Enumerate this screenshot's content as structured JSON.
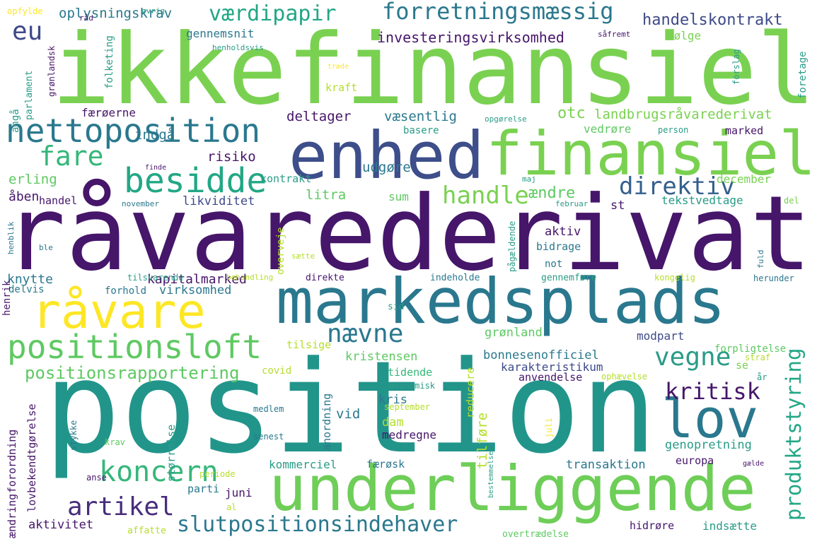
{
  "palette": {
    "dark_purple": "#46166a",
    "indigo": "#3d4e8a",
    "blue": "#355f8d",
    "teal_blue": "#2a788e",
    "teal": "#21918c",
    "aqua_green": "#22a785",
    "green": "#35b779",
    "light_green": "#6ece58",
    "lime": "#8fd744",
    "yellow_green": "#b5de2b",
    "yellow": "#fde725"
  },
  "words": [
    {
      "text": "ikkefinansiel",
      "color": "#7ad151"
    },
    {
      "text": "råvarederivat",
      "color": "#46166a"
    },
    {
      "text": "position",
      "color": "#22958b"
    },
    {
      "text": "markedsplads",
      "color": "#2a788e"
    },
    {
      "text": "underliggende",
      "color": "#6ece58"
    },
    {
      "text": "enhed",
      "color": "#3d4e8a"
    },
    {
      "text": "finansiel",
      "color": "#7ad151"
    },
    {
      "text": "nettoposition",
      "color": "#2a788e"
    },
    {
      "text": "råvare",
      "color": "#fde725"
    },
    {
      "text": "lov",
      "color": "#2a788e"
    },
    {
      "text": "positionsloft",
      "color": "#5ec962"
    },
    {
      "text": "besidde",
      "color": "#22a785"
    },
    {
      "text": "koncern",
      "color": "#35b779"
    },
    {
      "text": "fare",
      "color": "#35b779"
    },
    {
      "text": "forretningsmæssig",
      "color": "#2a788e"
    },
    {
      "text": "værdipapir",
      "color": "#22a785"
    },
    {
      "text": "eu",
      "color": "#3e4a89"
    },
    {
      "text": "direktiv",
      "color": "#355f8d"
    },
    {
      "text": "handle",
      "color": "#7ad151"
    },
    {
      "text": "nævne",
      "color": "#2a788e"
    },
    {
      "text": "vegne",
      "color": "#2a9c87"
    },
    {
      "text": "kritisk",
      "color": "#46166a"
    },
    {
      "text": "artikel",
      "color": "#472d7b"
    },
    {
      "text": "slutpositionsindehaver",
      "color": "#2a788e"
    },
    {
      "text": "positionsrapportering",
      "color": "#5ec962"
    },
    {
      "text": "produktstyring",
      "color": "#22a785"
    },
    {
      "text": "handelskontrakt",
      "color": "#3e4a89"
    },
    {
      "text": "investeringsvirksomhed",
      "color": "#46166a"
    },
    {
      "text": "landbrugsråvarederivat",
      "color": "#7ad151"
    },
    {
      "text": "oplysningskrav",
      "color": "#2a788e"
    },
    {
      "text": "gennemsnit",
      "color": "#2a788e"
    },
    {
      "text": "følge",
      "color": "#7ad151"
    },
    {
      "text": "kraft",
      "color": "#b5de2b"
    },
    {
      "text": "færøerne",
      "color": "#46166a"
    },
    {
      "text": "deltager",
      "color": "#46166a"
    },
    {
      "text": "væsentlig",
      "color": "#2a788e"
    },
    {
      "text": "otc",
      "color": "#7ad151"
    },
    {
      "text": "basere",
      "color": "#2a9c87"
    },
    {
      "text": "vedrøre",
      "color": "#5ec962"
    },
    {
      "text": "marked",
      "color": "#46166a"
    },
    {
      "text": "indgå",
      "color": "#2a788e"
    },
    {
      "text": "risiko",
      "color": "#46166a"
    },
    {
      "text": "erling",
      "color": "#5ec962"
    },
    {
      "text": "kontrakt",
      "color": "#2a9c87"
    },
    {
      "text": "litra",
      "color": "#5ec962"
    },
    {
      "text": "udgøre",
      "color": "#2a788e"
    },
    {
      "text": "ændre",
      "color": "#5ec962"
    },
    {
      "text": "december",
      "color": "#7ad151"
    },
    {
      "text": "åben",
      "color": "#46166a"
    },
    {
      "text": "handel",
      "color": "#46166a"
    },
    {
      "text": "likviditet",
      "color": "#3e4a89"
    },
    {
      "text": "sum",
      "color": "#5ec962"
    },
    {
      "text": "st",
      "color": "#46166a"
    },
    {
      "text": "tekstvedtage",
      "color": "#2a9c87"
    },
    {
      "text": "aktiv",
      "color": "#46166a"
    },
    {
      "text": "bidrage",
      "color": "#2a788e"
    },
    {
      "text": "not",
      "color": "#2a788e"
    },
    {
      "text": "knytte",
      "color": "#2a788e"
    },
    {
      "text": "kapitalmarked",
      "color": "#46166a"
    },
    {
      "text": "virksomhed",
      "color": "#2a788e"
    },
    {
      "text": "delvis",
      "color": "#2a788e"
    },
    {
      "text": "forhold",
      "color": "#2a788e"
    },
    {
      "text": "henrik",
      "color": "#46166a"
    },
    {
      "text": "grønland",
      "color": "#5ec962"
    },
    {
      "text": "modpart",
      "color": "#3e4a89"
    },
    {
      "text": "forpligtelse",
      "color": "#5ec962"
    },
    {
      "text": "bonnesenofficiel",
      "color": "#2a788e"
    },
    {
      "text": "karakteristikum",
      "color": "#3e4a89"
    },
    {
      "text": "kristensen",
      "color": "#5ec962"
    },
    {
      "text": "tilsige",
      "color": "#b5de2b"
    },
    {
      "text": "tidende",
      "color": "#35b779"
    },
    {
      "text": "anvendelse",
      "color": "#46166a"
    },
    {
      "text": "økonomisk",
      "color": "#2a9c87"
    },
    {
      "text": "covid",
      "color": "#b5de2b"
    },
    {
      "text": "kris",
      "color": "#2a788e"
    },
    {
      "text": "vid",
      "color": "#2a788e"
    },
    {
      "text": "dam",
      "color": "#b5de2b"
    },
    {
      "text": "medregne",
      "color": "#46166a"
    },
    {
      "text": "genopretning",
      "color": "#2a9c87"
    },
    {
      "text": "transaktion",
      "color": "#2a788e"
    },
    {
      "text": "europa",
      "color": "#46166a"
    },
    {
      "text": "kommerciel",
      "color": "#2a9c87"
    },
    {
      "text": "færøsk",
      "color": "#2a788e"
    },
    {
      "text": "parti",
      "color": "#2a788e"
    },
    {
      "text": "juni",
      "color": "#46166a"
    },
    {
      "text": "aktivitet",
      "color": "#46166a"
    },
    {
      "text": "indsætte",
      "color": "#2a9c87"
    },
    {
      "text": "hidrøre",
      "color": "#46166a"
    },
    {
      "text": "overtrædelse",
      "color": "#5ec962"
    },
    {
      "text": "affatte",
      "color": "#b5de2b"
    },
    {
      "text": "al",
      "color": "#b5de2b"
    },
    {
      "text": "periode",
      "color": "#b5de2b"
    },
    {
      "text": "anse",
      "color": "#46166a"
    },
    {
      "text": "medlem",
      "color": "#2a788e"
    },
    {
      "text": "krav",
      "color": "#5ec962"
    },
    {
      "text": "senest",
      "color": "#2a788e"
    },
    {
      "text": "september",
      "color": "#b5de2b"
    },
    {
      "text": "sid",
      "color": "#2a9c87"
    },
    {
      "text": "indeholde",
      "color": "#2a788e"
    },
    {
      "text": "direkte",
      "color": "#46166a"
    },
    {
      "text": "behandling",
      "color": "#b5de2b"
    },
    {
      "text": "gennemføre",
      "color": "#2a9c87"
    },
    {
      "text": "kongelig",
      "color": "#b5de2b"
    },
    {
      "text": "herunder",
      "color": "#2a788e"
    },
    {
      "text": "tilsvarende",
      "color": "#2a9c87"
    },
    {
      "text": "sætte",
      "color": "#b5de2b"
    },
    {
      "text": "ble",
      "color": "#2a788e"
    },
    {
      "text": "henblik",
      "color": "#2a788e"
    },
    {
      "text": "november",
      "color": "#2a788e"
    },
    {
      "text": "maj",
      "color": "#2a9c87"
    },
    {
      "text": "februar",
      "color": "#2a9c87"
    },
    {
      "text": "del",
      "color": "#7ad151"
    },
    {
      "text": "finde",
      "color": "#46166a"
    },
    {
      "text": "person",
      "color": "#2a9c87"
    },
    {
      "text": "opgørelse",
      "color": "#2a9c87"
    },
    {
      "text": "se",
      "color": "#7ad151"
    },
    {
      "text": "år",
      "color": "#2a9c87"
    },
    {
      "text": "straf",
      "color": "#b5de2b"
    },
    {
      "text": "ophævelse",
      "color": "#b5de2b"
    },
    {
      "text": "gælde",
      "color": "#46166a"
    },
    {
      "text": "opfylde",
      "color": "#fde725"
    },
    {
      "text": "råd",
      "color": "#46166a"
    },
    {
      "text": "øvrig",
      "color": "#2a9c87"
    },
    {
      "text": "henholdsvis",
      "color": "#2a9c87"
    },
    {
      "text": "såfremt",
      "color": "#46166a"
    },
    {
      "text": "træde",
      "color": "#fde725"
    },
    {
      "text": "angå",
      "color": "#2a9c87"
    },
    {
      "text": "grønlandsk",
      "color": "#46166a"
    },
    {
      "text": "parlament",
      "color": "#2a9c87"
    },
    {
      "text": "folketing",
      "color": "#2a9c87"
    },
    {
      "text": "forslag",
      "color": "#2a9c87"
    },
    {
      "text": "foretage",
      "color": "#2a9c87"
    },
    {
      "text": "overveje",
      "color": "#b5de2b"
    },
    {
      "text": "pågældende",
      "color": "#2a9c87"
    },
    {
      "text": "fuld",
      "color": "#2a788e"
    },
    {
      "text": "reducere",
      "color": "#b5de2b"
    },
    {
      "text": "tilføre",
      "color": "#b5de2b"
    },
    {
      "text": "anordning",
      "color": "#2a788e"
    },
    {
      "text": "størrelse",
      "color": "#2a9c87"
    },
    {
      "text": "stykke",
      "color": "#2a788e"
    },
    {
      "text": "lovbekendtgørelse",
      "color": "#46166a"
    },
    {
      "text": "ændring",
      "color": "#46166a"
    },
    {
      "text": "forordning",
      "color": "#46166a"
    },
    {
      "text": "juli",
      "color": "#fde725"
    },
    {
      "text": "bestemmelse",
      "color": "#2a9c87"
    }
  ]
}
